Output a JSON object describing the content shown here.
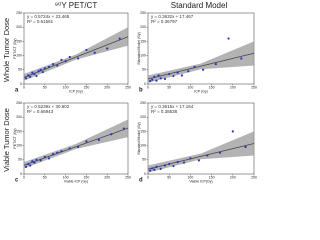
{
  "column_titles": [
    "⁹⁰Y PET/CT",
    "Standard Model"
  ],
  "row_titles": [
    "Whole Tumor Dose",
    "Viable Tumor Dose"
  ],
  "chart_data": [
    {
      "type": "scatter",
      "panel": "a",
      "equation": [
        "y = 0.5724x + 23.465",
        "R² = 0.61561"
      ],
      "x_label": "ICP (Gy)",
      "y_label": "PET/CT (Gy)",
      "xlim": [
        0,
        250
      ],
      "ylim": [
        0,
        250
      ],
      "xticks": [
        0,
        50,
        100,
        150,
        200,
        250
      ],
      "yticks": [
        0,
        50,
        100,
        150,
        200,
        250
      ],
      "x": [
        5,
        10,
        15,
        20,
        25,
        30,
        35,
        40,
        45,
        50,
        60,
        70,
        80,
        90,
        100,
        110,
        130,
        150,
        170,
        200,
        230
      ],
      "values": [
        20,
        30,
        25,
        40,
        35,
        28,
        45,
        50,
        42,
        55,
        60,
        70,
        65,
        85,
        80,
        95,
        90,
        120,
        110,
        125,
        160
      ],
      "fit": {
        "x": [
          0,
          250
        ],
        "values": [
          23.465,
          166.565
        ]
      },
      "band": {
        "x": [
          0,
          125,
          250
        ],
        "lower": [
          12,
          86,
          135
        ],
        "upper": [
          35,
          104,
          200
        ]
      },
      "point_color": "#2233cc",
      "line_color": "#444444",
      "band_color": "#9a9a9a"
    },
    {
      "type": "scatter",
      "panel": "b",
      "equation": [
        "y = 0.3632x + 17.467",
        "R² = 0.36797"
      ],
      "x_label": "ICP (Gy)",
      "y_label": "Standard Model (Gy)",
      "xlim": [
        0,
        250
      ],
      "ylim": [
        0,
        250
      ],
      "xticks": [
        0,
        50,
        100,
        150,
        200,
        250
      ],
      "yticks": [
        0,
        50,
        100,
        150,
        200,
        250
      ],
      "x": [
        5,
        10,
        15,
        20,
        25,
        30,
        40,
        50,
        60,
        70,
        80,
        95,
        110,
        130,
        160,
        190,
        220
      ],
      "values": [
        10,
        15,
        25,
        12,
        30,
        20,
        18,
        35,
        28,
        40,
        30,
        45,
        60,
        50,
        70,
        160,
        90
      ],
      "fit": {
        "x": [
          0,
          250
        ],
        "values": [
          17.467,
          108.267
        ]
      },
      "band": {
        "x": [
          0,
          125,
          250
        ],
        "lower": [
          5,
          52,
          65
        ],
        "upper": [
          30,
          72,
          150
        ]
      },
      "point_color": "#2233cc",
      "line_color": "#444444",
      "band_color": "#9a9a9a"
    },
    {
      "type": "scatter",
      "panel": "c",
      "equation": [
        "y = 0.5239x + 30.602",
        "R² = 0.66943"
      ],
      "x_label": "Viable ICP (Gy)",
      "y_label": "PET/CT (Gy)",
      "xlim": [
        0,
        250
      ],
      "ylim": [
        0,
        250
      ],
      "xticks": [
        0,
        50,
        100,
        150,
        200,
        250
      ],
      "yticks": [
        0,
        50,
        100,
        150,
        200,
        250
      ],
      "x": [
        5,
        10,
        15,
        20,
        25,
        30,
        40,
        50,
        60,
        70,
        80,
        90,
        110,
        130,
        150,
        180,
        210,
        240
      ],
      "values": [
        25,
        35,
        30,
        45,
        40,
        50,
        48,
        60,
        55,
        70,
        75,
        80,
        90,
        95,
        115,
        120,
        140,
        160
      ],
      "fit": {
        "x": [
          0,
          250
        ],
        "values": [
          30.602,
          161.577
        ]
      },
      "band": {
        "x": [
          0,
          125,
          250
        ],
        "lower": [
          20,
          88,
          130
        ],
        "upper": [
          42,
          106,
          192
        ]
      },
      "point_color": "#2233cc",
      "line_color": "#444444",
      "band_color": "#9a9a9a"
    },
    {
      "type": "scatter",
      "panel": "d",
      "equation": [
        "y = 0.3615x + 17.164",
        "R² = 0.38538"
      ],
      "x_label": "Viable ICP(Gy)",
      "y_label": "Standard Model (Gy)",
      "xlim": [
        0,
        250
      ],
      "ylim": [
        0,
        250
      ],
      "xticks": [
        0,
        50,
        100,
        150,
        200,
        250
      ],
      "yticks": [
        0,
        50,
        100,
        150,
        200,
        250
      ],
      "x": [
        5,
        10,
        15,
        20,
        30,
        40,
        50,
        60,
        70,
        85,
        100,
        120,
        140,
        170,
        200,
        230
      ],
      "values": [
        12,
        20,
        15,
        25,
        18,
        30,
        35,
        28,
        42,
        40,
        55,
        48,
        65,
        75,
        150,
        95
      ],
      "fit": {
        "x": [
          0,
          250
        ],
        "values": [
          17.164,
          107.539
        ]
      },
      "band": {
        "x": [
          0,
          125,
          250
        ],
        "lower": [
          5,
          52,
          65
        ],
        "upper": [
          30,
          72,
          150
        ]
      },
      "point_color": "#2233cc",
      "line_color": "#444444",
      "band_color": "#9a9a9a"
    }
  ]
}
